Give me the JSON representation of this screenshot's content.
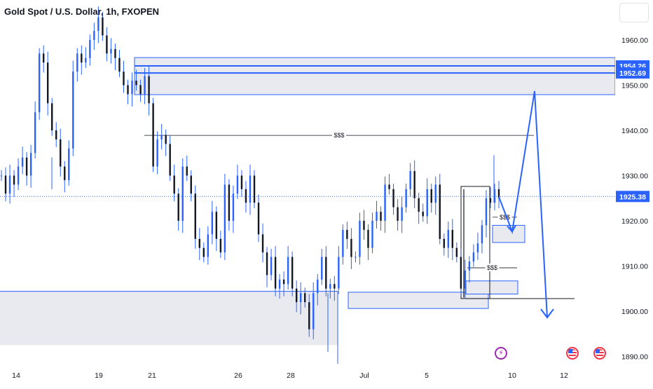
{
  "header": {
    "symbol": "Gold Spot / U.S. Dollar",
    "interval": "1h",
    "broker": "FXOPEN"
  },
  "colors": {
    "zone_fill": "#e9eaef",
    "zone_border": "#2962ff",
    "line_blue": "#2962ff",
    "price_tag": "#2962ff",
    "candle": "#131722",
    "wick": "#2962ff",
    "axis_text": "#131722",
    "current_line": "#2962ff"
  },
  "chart_data": {
    "type": "candlestick",
    "title": "Gold Spot / U.S. Dollar, 1h, FXOPEN",
    "y_axis": {
      "ylim": [
        1887,
        1968
      ],
      "ticks": [
        1960,
        1950,
        1940,
        1930,
        1920,
        1910,
        1900,
        1890
      ],
      "tick_labels": [
        "1960.00",
        "1950.00",
        "1940.00",
        "1930.00",
        "1920.00",
        "1910.00",
        "1900.00",
        "1890.00"
      ]
    },
    "x_axis": {
      "ticks": [
        14,
        19,
        21,
        26,
        28,
        "Jul",
        5,
        10,
        12
      ],
      "tick_labels": [
        "14",
        "19",
        "21",
        "26",
        "28",
        "Jul",
        "5",
        "10",
        "12"
      ]
    },
    "price_labels": [
      "1954.26",
      "1952.69",
      "1925.38"
    ],
    "current_price": 1925.38,
    "levels": [
      1954.26,
      1952.69
    ],
    "zones": [
      {
        "name": "supply-zone-top",
        "y_top": 1956.1,
        "y_bottom": 1947.9
      },
      {
        "name": "demand-zone-left",
        "y_top": 1904.4,
        "y_bottom": 1892.5
      },
      {
        "name": "demand-zone-mid",
        "y_top": 1904.2,
        "y_bottom": 1900.6
      },
      {
        "name": "small-zone-low",
        "y_top": 1906.7,
        "y_bottom": 1903.8
      },
      {
        "name": "small-zone-mid",
        "y_top": 1919.0,
        "y_bottom": 1915.2
      },
      {
        "name": "box-recent-range",
        "y_top": 1927.6,
        "y_bottom": 1902.8
      }
    ],
    "annotations": [
      {
        "text": "$$$",
        "y": 1938.9
      },
      {
        "text": "$$$",
        "y": 1920.8
      },
      {
        "text": "$$$",
        "y": 1909.6
      }
    ],
    "projection_path_y": [
      1925.3,
      1917.6,
      1948.7,
      1898.6
    ],
    "candles_close_path_y": [
      1930,
      1926,
      1930,
      1928,
      1932,
      1934,
      1930,
      1935,
      1944,
      1957,
      1955,
      1946,
      1940,
      1938,
      1932,
      1929,
      1936,
      1953,
      1957,
      1955,
      1956,
      1960,
      1962,
      1965,
      1961,
      1957,
      1958,
      1956,
      1953,
      1950,
      1948,
      1951,
      1950,
      1948,
      1952,
      1946,
      1932,
      1938,
      1939,
      1937,
      1930,
      1926,
      1920,
      1932,
      1930,
      1926,
      1916,
      1914,
      1912,
      1917,
      1922,
      1916,
      1913,
      1928,
      1920,
      1926,
      1930,
      1927,
      1924,
      1930,
      1924,
      1917,
      1913,
      1908,
      1912,
      1905,
      1907,
      1906,
      1912,
      1905,
      1902,
      1904,
      1902,
      1896,
      1904,
      1907,
      1912,
      1905,
      1906,
      1905,
      1912,
      1918,
      1916,
      1912,
      1912,
      1920,
      1918,
      1914,
      1920,
      1922,
      1920,
      1928,
      1927,
      1923,
      1920,
      1923,
      1927,
      1931,
      1925,
      1922,
      1921,
      1927,
      1924,
      1928,
      1916,
      1914,
      1918,
      1914,
      1912,
      1905,
      1909,
      1911,
      1913,
      1915,
      1919,
      1925,
      1924,
      1927,
      1925
    ]
  },
  "events": {
    "bolt": "bolt-icon",
    "flags": [
      "us-flag-icon",
      "us-flag-icon"
    ]
  }
}
